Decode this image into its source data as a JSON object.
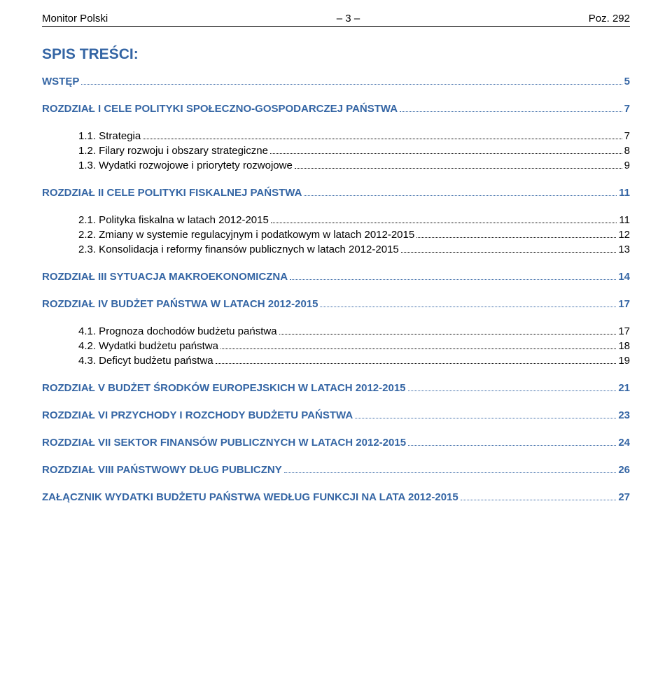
{
  "header": {
    "left": "Monitor Polski",
    "center": "– 3 –",
    "right": "Poz. 292"
  },
  "title": "SPIS TREŚCI:",
  "toc": [
    {
      "type": "section",
      "label": "WSTĘP",
      "page": "5"
    },
    {
      "type": "section",
      "label": "ROZDZIAŁ I CELE POLITYKI SPOŁECZNO-GOSPODARCZEJ PAŃSTWA",
      "page": "7"
    },
    {
      "type": "sub",
      "label": "1.1. Strategia",
      "page": "7"
    },
    {
      "type": "sub",
      "label": "1.2. Filary rozwoju i obszary strategiczne",
      "page": "8"
    },
    {
      "type": "sub",
      "label": "1.3. Wydatki rozwojowe i priorytety rozwojowe",
      "page": "9"
    },
    {
      "type": "section",
      "label": "ROZDZIAŁ II CELE POLITYKI FISKALNEJ PAŃSTWA",
      "page": "11"
    },
    {
      "type": "sub",
      "label": "2.1. Polityka fiskalna w latach 2012-2015",
      "page": "11"
    },
    {
      "type": "sub",
      "label": "2.2. Zmiany w systemie regulacyjnym i podatkowym w latach 2012-2015",
      "page": "12"
    },
    {
      "type": "sub",
      "label": "2.3. Konsolidacja i reformy finansów publicznych w latach 2012-2015",
      "page": "13"
    },
    {
      "type": "section",
      "label": "ROZDZIAŁ III SYTUACJA MAKROEKONOMICZNA",
      "page": "14"
    },
    {
      "type": "section",
      "label": "ROZDZIAŁ IV BUDŻET PAŃSTWA W LATACH 2012-2015",
      "page": "17"
    },
    {
      "type": "sub",
      "label": "4.1. Prognoza dochodów budżetu państwa",
      "page": "17"
    },
    {
      "type": "sub",
      "label": "4.2. Wydatki budżetu państwa",
      "page": "18"
    },
    {
      "type": "sub",
      "label": "4.3. Deficyt budżetu państwa",
      "page": "19"
    },
    {
      "type": "section",
      "label": "ROZDZIAŁ V BUDŻET ŚRODKÓW EUROPEJSKICH W LATACH 2012-2015",
      "page": "21"
    },
    {
      "type": "section",
      "label": "ROZDZIAŁ VI PRZYCHODY I ROZCHODY BUDŻETU PAŃSTWA",
      "page": "23"
    },
    {
      "type": "section",
      "label": "ROZDZIAŁ VII SEKTOR FINANSÓW PUBLICZNYCH W LATACH 2012-2015",
      "page": "24"
    },
    {
      "type": "section",
      "label": "ROZDZIAŁ VIII PAŃSTWOWY DŁUG PUBLICZNY",
      "page": "26"
    },
    {
      "type": "section",
      "label": "ZAŁĄCZNIK WYDATKI BUDŻETU PAŃSTWA WEDŁUG FUNKCJI NA LATA 2012-2015",
      "page": "27"
    }
  ],
  "colors": {
    "section": "#3465a4",
    "text": "#000000",
    "background": "#ffffff"
  },
  "fontsizes": {
    "title": 21,
    "body": 15
  }
}
